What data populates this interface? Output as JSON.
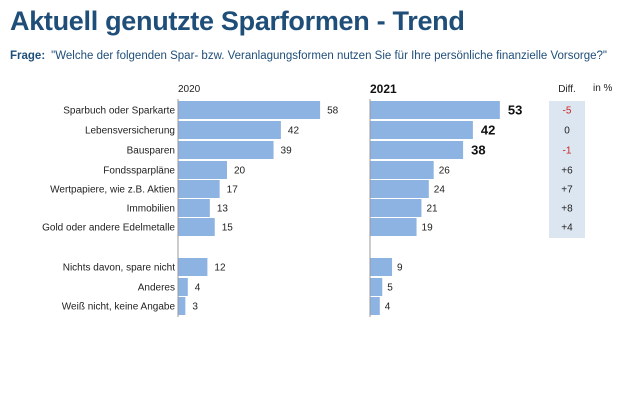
{
  "title": "Aktuell genutzte Sparformen - Trend",
  "question": {
    "label": "Frage:",
    "text": "\"Welche der folgenden Spar- bzw. Veranlagungsformen nutzen Sie für Ihre persönliche finanzielle Vorsorge?\""
  },
  "chart_data": {
    "type": "bar",
    "unit": "in %",
    "diff_header": "Diff.",
    "colors": {
      "bar": "#8db3e2",
      "diff_box": "#dce6f1",
      "negative": "#cc2222",
      "title": "#1f4e79"
    },
    "series": [
      {
        "name": "2020",
        "values": [
          58,
          42,
          39,
          20,
          17,
          13,
          15,
          12,
          4,
          3
        ]
      },
      {
        "name": "2021",
        "values": [
          53,
          42,
          38,
          26,
          24,
          21,
          19,
          9,
          5,
          4
        ]
      }
    ],
    "categories": [
      "Sparbuch oder Sparkarte",
      "Lebensversicherung",
      "Bausparen",
      "Fondssparpläne",
      "Wertpapiere, wie z.B. Aktien",
      "Immobilien",
      "Gold oder andere Edelmetalle",
      "Nichts davon, spare nicht",
      "Anderes",
      "Weiß nicht, keine Angabe"
    ],
    "diff": [
      "-5",
      "0",
      "-1",
      "+6",
      "+7",
      "+8",
      "+4"
    ],
    "bold_2021_top": 3
  }
}
